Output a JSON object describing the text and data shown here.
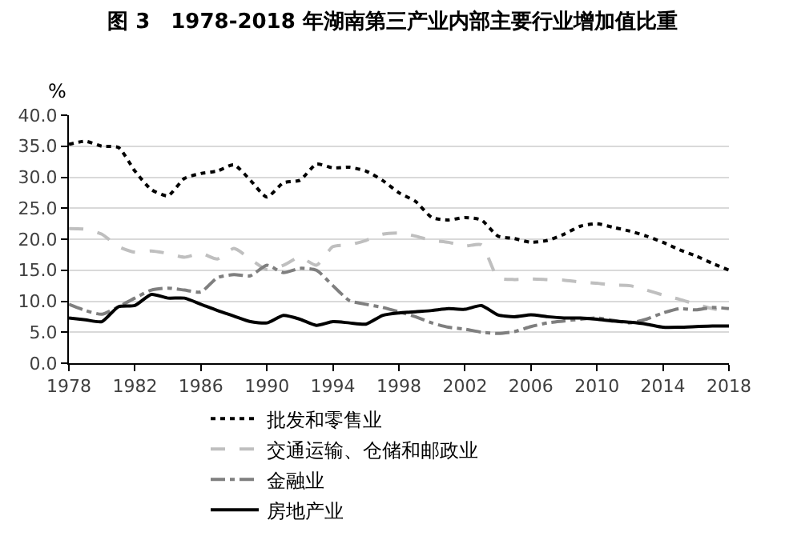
{
  "chart_data": {
    "type": "line",
    "title": "图 3　1978-2018 年湖南第三产业内部主要行业增加值比重",
    "ylabel": "%",
    "x": [
      1978,
      1979,
      1980,
      1981,
      1982,
      1983,
      1984,
      1985,
      1986,
      1987,
      1988,
      1989,
      1990,
      1991,
      1992,
      1993,
      1994,
      1995,
      1996,
      1997,
      1998,
      1999,
      2000,
      2001,
      2002,
      2003,
      2004,
      2005,
      2006,
      2007,
      2008,
      2009,
      2010,
      2011,
      2012,
      2013,
      2014,
      2015,
      2016,
      2017,
      2018
    ],
    "series": [
      {
        "name": "批发和零售业",
        "color": "#000000",
        "line_style": "dotted",
        "values": [
          35.3,
          35.8,
          35.0,
          34.8,
          31.0,
          28.0,
          27.0,
          29.8,
          30.6,
          31.0,
          32.0,
          29.5,
          26.8,
          29.1,
          29.5,
          32.1,
          31.5,
          31.6,
          31.0,
          29.5,
          27.5,
          26.1,
          23.5,
          23.1,
          23.5,
          23.1,
          20.5,
          20.1,
          19.5,
          19.8,
          20.8,
          22.1,
          22.5,
          21.9,
          21.3,
          20.5,
          19.5,
          18.3,
          17.3,
          16.1,
          15.0
        ]
      },
      {
        "name": "交通运输、仓储和邮政业",
        "color": "#bfbfbf",
        "line_style": "dashed",
        "values": [
          21.7,
          21.6,
          20.8,
          18.8,
          17.9,
          18.1,
          17.7,
          17.1,
          17.7,
          16.8,
          18.5,
          16.8,
          15.1,
          15.8,
          17.1,
          15.8,
          18.8,
          19.1,
          19.8,
          20.8,
          21.0,
          20.5,
          19.8,
          19.5,
          18.9,
          19.1,
          13.8,
          13.5,
          13.6,
          13.5,
          13.4,
          13.1,
          12.9,
          12.6,
          12.5,
          11.8,
          11.0,
          10.3,
          9.5,
          8.8,
          8.3
        ]
      },
      {
        "name": "金融业",
        "color": "#7f7f7f",
        "line_style": "dashdot",
        "values": [
          9.5,
          8.5,
          7.9,
          9.1,
          10.5,
          11.8,
          12.1,
          11.8,
          11.5,
          13.8,
          14.3,
          14.1,
          15.8,
          14.6,
          15.3,
          15.0,
          12.5,
          10.1,
          9.5,
          9.0,
          8.3,
          7.5,
          6.5,
          5.8,
          5.5,
          5.0,
          4.8,
          5.1,
          5.9,
          6.5,
          6.8,
          7.1,
          7.3,
          6.9,
          6.5,
          7.1,
          8.1,
          8.8,
          8.6,
          9.0,
          8.8
        ]
      },
      {
        "name": "房地产业",
        "color": "#000000",
        "line_style": "solid",
        "values": [
          7.3,
          7.0,
          6.7,
          9.1,
          9.3,
          11.1,
          10.5,
          10.5,
          9.5,
          8.5,
          7.6,
          6.7,
          6.5,
          7.7,
          7.1,
          6.1,
          6.7,
          6.5,
          6.3,
          7.7,
          8.1,
          8.3,
          8.5,
          8.8,
          8.7,
          9.3,
          7.8,
          7.5,
          7.8,
          7.5,
          7.3,
          7.3,
          7.1,
          6.8,
          6.6,
          6.3,
          5.8,
          5.8,
          5.9,
          6.0,
          6.0
        ]
      }
    ],
    "xlim": [
      1978,
      2018
    ],
    "xticks": [
      1978,
      1982,
      1986,
      1990,
      1994,
      1998,
      2002,
      2006,
      2010,
      2014,
      2018
    ],
    "ylim": [
      0,
      40
    ],
    "yticks": [
      {
        "value": 0,
        "label": "0.0"
      },
      {
        "value": 5,
        "label": "5.0"
      },
      {
        "value": 10,
        "label": "10.0"
      },
      {
        "value": 15,
        "label": "15.0"
      },
      {
        "value": 20,
        "label": "20.0"
      },
      {
        "value": 25,
        "label": "25.0"
      },
      {
        "value": 30,
        "label": "30.0"
      },
      {
        "value": 35,
        "label": "35.0"
      },
      {
        "value": 40,
        "label": "40.0"
      }
    ],
    "grid": "y",
    "legend": "bottom"
  }
}
